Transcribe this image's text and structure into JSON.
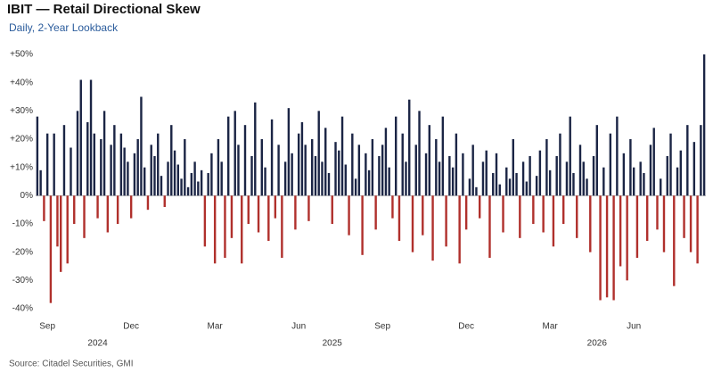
{
  "chart_data": {
    "type": "bar",
    "title": "IBIT — Retail Directional Skew",
    "subtitle": "Daily,  2-Year Lookback",
    "source": "Source: Citadel Securities, GMI",
    "positive_color": "#1b2545",
    "negative_color": "#b0302c",
    "ylim": [
      -40,
      50
    ],
    "yticks": [
      {
        "value": 50,
        "label": "+50%"
      },
      {
        "value": 40,
        "label": "+40%"
      },
      {
        "value": 30,
        "label": "+30%"
      },
      {
        "value": 20,
        "label": "+20%"
      },
      {
        "value": 10,
        "label": "+10%"
      },
      {
        "value": 0,
        "label": "0%"
      },
      {
        "value": -10,
        "label": "-10%"
      },
      {
        "value": -20,
        "label": "-20%"
      },
      {
        "value": -30,
        "label": "-30%"
      },
      {
        "value": -40,
        "label": "-40%"
      }
    ],
    "categories": [
      null,
      null,
      null,
      "Sep",
      null,
      null,
      null,
      null,
      null,
      null,
      null,
      null,
      null,
      null,
      null,
      null,
      null,
      null,
      null,
      null,
      null,
      null,
      null,
      null,
      null,
      null,
      null,
      null,
      "Dec",
      null,
      null,
      null,
      null,
      null,
      null,
      null,
      null,
      null,
      null,
      null,
      null,
      null,
      null,
      null,
      null,
      null,
      null,
      null,
      null,
      null,
      null,
      null,
      null,
      "Mar",
      null,
      null,
      null,
      null,
      null,
      null,
      null,
      null,
      null,
      null,
      null,
      null,
      null,
      null,
      null,
      null,
      null,
      null,
      null,
      null,
      null,
      null,
      null,
      null,
      "Jun",
      null,
      null,
      null,
      null,
      null,
      null,
      null,
      null,
      null,
      null,
      null,
      null,
      null,
      null,
      null,
      null,
      null,
      null,
      null,
      null,
      null,
      null,
      null,
      null,
      "Sep",
      null,
      null,
      null,
      null,
      null,
      null,
      null,
      null,
      null,
      null,
      null,
      null,
      null,
      null,
      null,
      null,
      null,
      null,
      null,
      null,
      null,
      null,
      null,
      null,
      "Dec",
      null,
      null,
      null,
      null,
      null,
      null,
      null,
      null,
      null,
      null,
      null,
      null,
      null,
      null,
      null,
      null,
      null,
      null,
      null,
      null,
      null,
      null,
      null,
      null,
      "Mar",
      null,
      null,
      null,
      null,
      null,
      null,
      null,
      null,
      null,
      null,
      null,
      null,
      null,
      null,
      null,
      null,
      null,
      null,
      null,
      null,
      null,
      null,
      null,
      null,
      "Jun",
      null,
      null,
      null,
      null,
      null,
      null,
      null,
      null,
      null,
      null,
      null,
      null,
      null,
      null,
      null,
      null,
      null,
      null,
      null,
      null,
      null
    ],
    "year_labels": [
      null,
      null,
      null,
      null,
      null,
      null,
      null,
      null,
      null,
      null,
      null,
      null,
      null,
      null,
      null,
      null,
      null,
      null,
      "2024",
      null,
      null,
      null,
      null,
      null,
      null,
      null,
      null,
      null,
      null,
      null,
      null,
      null,
      null,
      null,
      null,
      null,
      null,
      null,
      null,
      null,
      null,
      null,
      null,
      null,
      null,
      null,
      null,
      null,
      null,
      null,
      null,
      null,
      null,
      null,
      null,
      null,
      null,
      null,
      null,
      null,
      null,
      null,
      null,
      null,
      null,
      null,
      null,
      null,
      null,
      null,
      null,
      null,
      null,
      null,
      null,
      null,
      null,
      null,
      null,
      null,
      null,
      null,
      null,
      null,
      null,
      null,
      null,
      null,
      "2025",
      null,
      null,
      null,
      null,
      null,
      null,
      null,
      null,
      null,
      null,
      null,
      null,
      null,
      null,
      null,
      null,
      null,
      null,
      null,
      null,
      null,
      null,
      null,
      null,
      null,
      null,
      null,
      null,
      null,
      null,
      null,
      null,
      null,
      null,
      null,
      null,
      null,
      null,
      null,
      null,
      null,
      null,
      null,
      null,
      null,
      null,
      null,
      null,
      null,
      null,
      null,
      null,
      null,
      null,
      null,
      null,
      null,
      null,
      null,
      null,
      null,
      null,
      null,
      null,
      null,
      null,
      null,
      null,
      null,
      null,
      null,
      null,
      null,
      null,
      null,
      null,
      null,
      null,
      "2026",
      null,
      null,
      null,
      null,
      null,
      null,
      null,
      null,
      null,
      null,
      null,
      null,
      null,
      null,
      null,
      null,
      null,
      null,
      null,
      null,
      null,
      null,
      null,
      null,
      null,
      null,
      null,
      null,
      null,
      null,
      null,
      null
    ],
    "values": [
      28,
      9,
      -9,
      22,
      -38,
      22,
      -18,
      -27,
      25,
      -24,
      17,
      -10,
      30,
      41,
      -15,
      26,
      41,
      22,
      -8,
      20,
      30,
      -13,
      18,
      25,
      -10,
      22,
      17,
      12,
      -8,
      15,
      20,
      35,
      10,
      -5,
      18,
      14,
      22,
      7,
      -4,
      12,
      25,
      16,
      11,
      6,
      20,
      3,
      8,
      12,
      5,
      9,
      -18,
      8,
      15,
      -24,
      20,
      12,
      -22,
      28,
      -15,
      30,
      18,
      -24,
      25,
      -10,
      14,
      33,
      -13,
      20,
      10,
      -16,
      27,
      -8,
      18,
      -22,
      12,
      31,
      15,
      -12,
      22,
      26,
      18,
      -9,
      20,
      14,
      30,
      12,
      24,
      8,
      -10,
      19,
      16,
      28,
      11,
      -14,
      22,
      6,
      18,
      -21,
      15,
      9,
      20,
      -12,
      14,
      18,
      24,
      10,
      -8,
      28,
      -16,
      22,
      12,
      34,
      -20,
      18,
      30,
      -14,
      15,
      25,
      -23,
      20,
      12,
      28,
      -18,
      14,
      10,
      22,
      -24,
      15,
      -12,
      6,
      18,
      3,
      -8,
      12,
      16,
      -22,
      8,
      15,
      4,
      -13,
      10,
      6,
      20,
      8,
      -15,
      12,
      5,
      14,
      -10,
      7,
      16,
      -13,
      20,
      9,
      -18,
      14,
      22,
      -10,
      12,
      28,
      8,
      -15,
      18,
      12,
      6,
      -20,
      14,
      25,
      -37,
      10,
      -36,
      22,
      -37,
      28,
      -25,
      15,
      -30,
      20,
      10,
      -22,
      12,
      8,
      -16,
      18,
      24,
      -12,
      6,
      -20,
      14,
      22,
      -32,
      10,
      16,
      -15,
      25,
      -20,
      19,
      -24,
      25,
      50
    ]
  }
}
